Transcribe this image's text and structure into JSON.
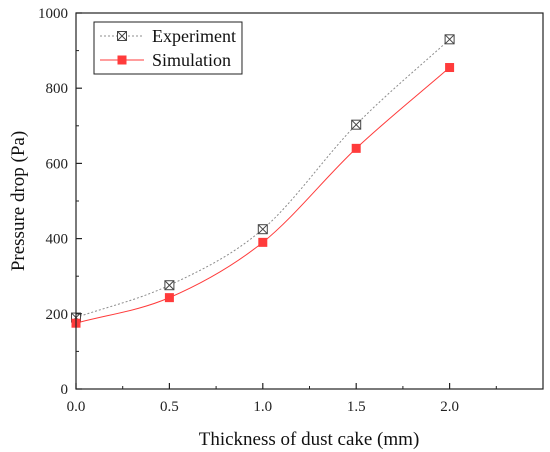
{
  "chart_data": {
    "type": "line",
    "title": "",
    "xlabel": "Thickness of dust cake (mm)",
    "ylabel": "Pressure drop (Pa)",
    "xlim": [
      0,
      2.5
    ],
    "ylim": [
      0,
      1000
    ],
    "xticks": [
      "0.0",
      "0.5",
      "1.0",
      "1.5",
      "2.0"
    ],
    "yticks": [
      "0",
      "200",
      "400",
      "600",
      "800",
      "1000"
    ],
    "legend_position": "top-left",
    "grid": false,
    "series": [
      {
        "name": "Experiment",
        "marker": "box-x",
        "line_style": "dotted",
        "color": "#8c8c8c",
        "x": [
          0.0,
          0.5,
          1.0,
          1.5,
          2.0
        ],
        "y": [
          190,
          276,
          425,
          703,
          930
        ]
      },
      {
        "name": "Simulation",
        "marker": "filled-square",
        "line_style": "solid",
        "color": "#ff3b3b",
        "x": [
          0.0,
          0.5,
          1.0,
          1.5,
          2.0
        ],
        "y": [
          175,
          243,
          390,
          640,
          855
        ]
      }
    ]
  }
}
